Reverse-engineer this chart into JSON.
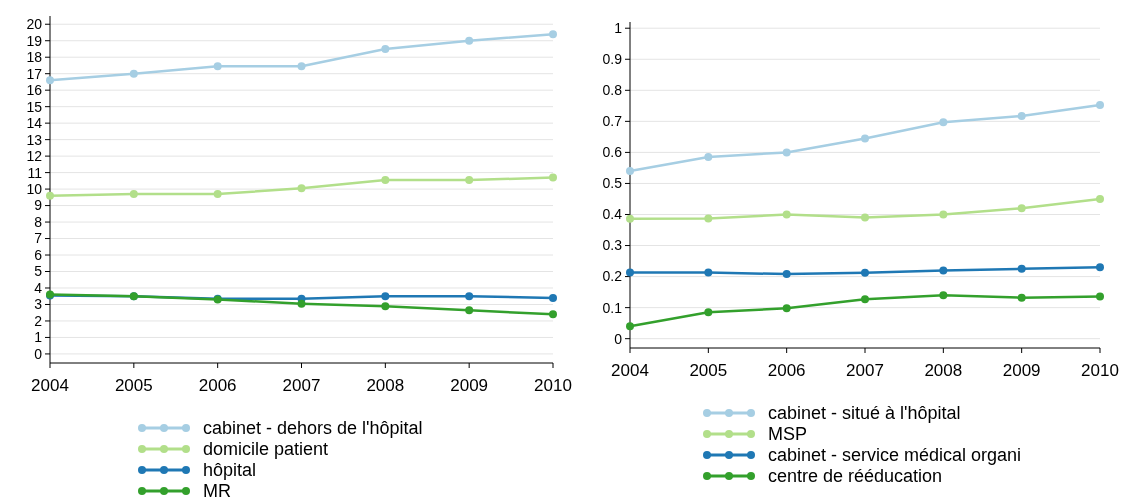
{
  "chart_data": [
    {
      "type": "line",
      "x": [
        2004,
        2005,
        2006,
        2007,
        2008,
        2009,
        2010
      ],
      "xlim": [
        2004,
        2010
      ],
      "xticks": [
        2004,
        2005,
        2006,
        2007,
        2008,
        2009,
        2010
      ],
      "ylim": [
        -0.55,
        20.5
      ],
      "yticks": [
        0,
        1,
        2,
        3,
        4,
        5,
        6,
        7,
        8,
        9,
        10,
        11,
        12,
        13,
        14,
        15,
        16,
        17,
        18,
        19,
        20
      ],
      "grid": "y",
      "legend": "bottom",
      "marker": "circle",
      "series": [
        {
          "name": "cabinet - dehors de l'hôpital",
          "color": "#a6cee3",
          "values": [
            16.6,
            17.0,
            17.45,
            17.45,
            18.5,
            19.0,
            19.4
          ]
        },
        {
          "name": "domicile patient",
          "color": "#b2df8a",
          "values": [
            9.6,
            9.7,
            9.7,
            10.05,
            10.55,
            10.55,
            10.7
          ]
        },
        {
          "name": "hôpital",
          "color": "#1f78b4",
          "values": [
            3.55,
            3.5,
            3.35,
            3.35,
            3.5,
            3.5,
            3.4
          ]
        },
        {
          "name": "MR",
          "color": "#33a02c",
          "values": [
            3.6,
            3.5,
            3.3,
            3.05,
            2.9,
            2.65,
            2.4
          ]
        }
      ]
    },
    {
      "type": "line",
      "x": [
        2004,
        2005,
        2006,
        2007,
        2008,
        2009,
        2010
      ],
      "xlim": [
        2004,
        2010
      ],
      "xticks": [
        2004,
        2005,
        2006,
        2007,
        2008,
        2009,
        2010
      ],
      "ylim": [
        -0.03,
        1.02
      ],
      "yticks": [
        0,
        0.1,
        0.2,
        0.3,
        0.4,
        0.5,
        0.6,
        0.7,
        0.8,
        0.9,
        1
      ],
      "grid": "y",
      "legend": "bottom",
      "marker": "circle",
      "series": [
        {
          "name": "cabinet - situé à l'hôpital",
          "color": "#a6cee3",
          "values": [
            0.54,
            0.585,
            0.6,
            0.645,
            0.697,
            0.717,
            0.753
          ]
        },
        {
          "name": "MSP",
          "color": "#b2df8a",
          "values": [
            0.386,
            0.387,
            0.4,
            0.39,
            0.4,
            0.42,
            0.45
          ]
        },
        {
          "name": "cabinet - service médical organi",
          "color": "#1f78b4",
          "values": [
            0.213,
            0.213,
            0.208,
            0.212,
            0.22,
            0.225,
            0.23
          ]
        },
        {
          "name": "centre de rééducation",
          "color": "#33a02c",
          "values": [
            0.04,
            0.085,
            0.098,
            0.127,
            0.14,
            0.132,
            0.136
          ]
        }
      ]
    }
  ]
}
